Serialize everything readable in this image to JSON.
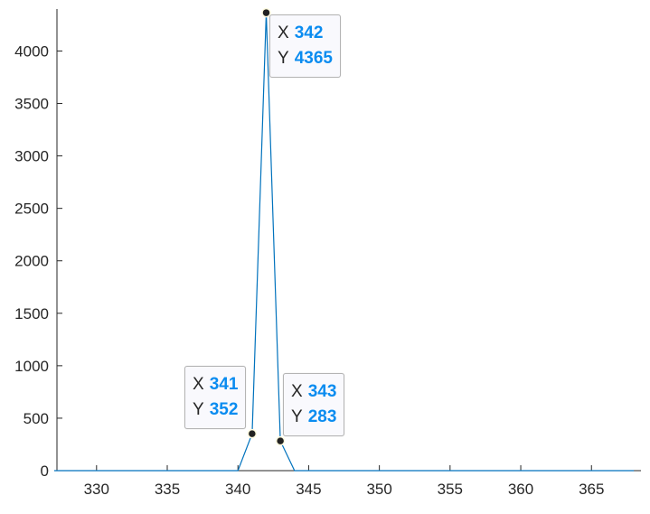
{
  "chart_data": {
    "type": "line",
    "title": "",
    "xlabel": "",
    "ylabel": "",
    "xlim": [
      327.2,
      368.5
    ],
    "ylim": [
      0,
      4400
    ],
    "xticks": [
      330,
      335,
      340,
      345,
      350,
      355,
      360,
      365
    ],
    "yticks": [
      0,
      500,
      1000,
      1500,
      2000,
      2500,
      3000,
      3500,
      4000
    ],
    "grid": false,
    "series": [
      {
        "color": "#0072bd",
        "x": [
          327,
          328,
          329,
          330,
          331,
          332,
          333,
          334,
          335,
          336,
          337,
          338,
          339,
          340,
          341,
          342,
          343,
          344,
          345,
          346,
          347,
          348,
          349,
          350,
          351,
          352,
          353,
          354,
          355,
          356,
          357,
          358,
          359,
          360,
          361,
          362,
          363,
          364,
          365,
          366,
          367,
          368
        ],
        "y": [
          0,
          0,
          0,
          0,
          0,
          0,
          0,
          0,
          0,
          0,
          0,
          0,
          0,
          0,
          352,
          4365,
          283,
          0,
          0,
          0,
          0,
          0,
          0,
          0,
          0,
          0,
          0,
          0,
          0,
          0,
          0,
          0,
          0,
          0,
          0,
          0,
          0,
          0,
          0,
          0,
          0,
          0
        ]
      }
    ],
    "datatips": [
      {
        "x_label": "X",
        "x": "342",
        "y_label": "Y",
        "y": "4365"
      },
      {
        "x_label": "X",
        "x": "341",
        "y_label": "Y",
        "y": "352"
      },
      {
        "x_label": "X",
        "x": "343",
        "y_label": "Y",
        "y": "283"
      }
    ]
  }
}
